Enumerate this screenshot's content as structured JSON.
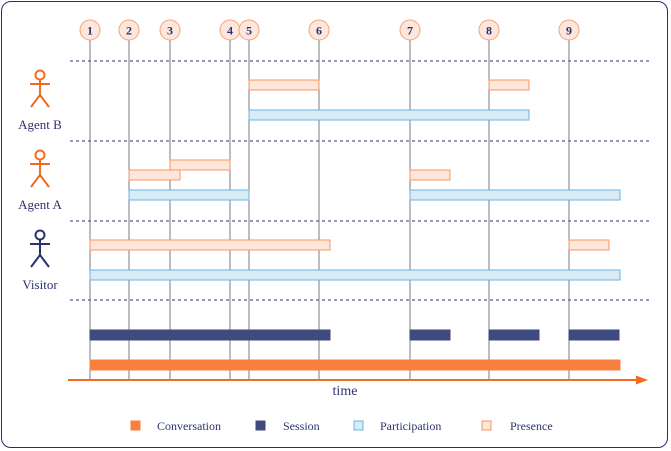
{
  "markers": [
    "1",
    "2",
    "3",
    "4",
    "5",
    "6",
    "7",
    "8",
    "9"
  ],
  "actors": [
    {
      "label": "Agent B",
      "color": "#f26b21"
    },
    {
      "label": "Agent A",
      "color": "#f26b21"
    },
    {
      "label": "Visitor",
      "color": "#2b3470"
    }
  ],
  "axis_label": "time",
  "legend": [
    {
      "label": "Conversation",
      "fill": "#f97f3f",
      "stroke": "#f97f3f"
    },
    {
      "label": "Session",
      "fill": "#3f4a7e",
      "stroke": "#3f4a7e"
    },
    {
      "label": "Participation",
      "fill": "#d8ecf6",
      "stroke": "#6bb3e0"
    },
    {
      "label": "Presence",
      "fill": "#fde6db",
      "stroke": "#f7955f"
    }
  ]
}
